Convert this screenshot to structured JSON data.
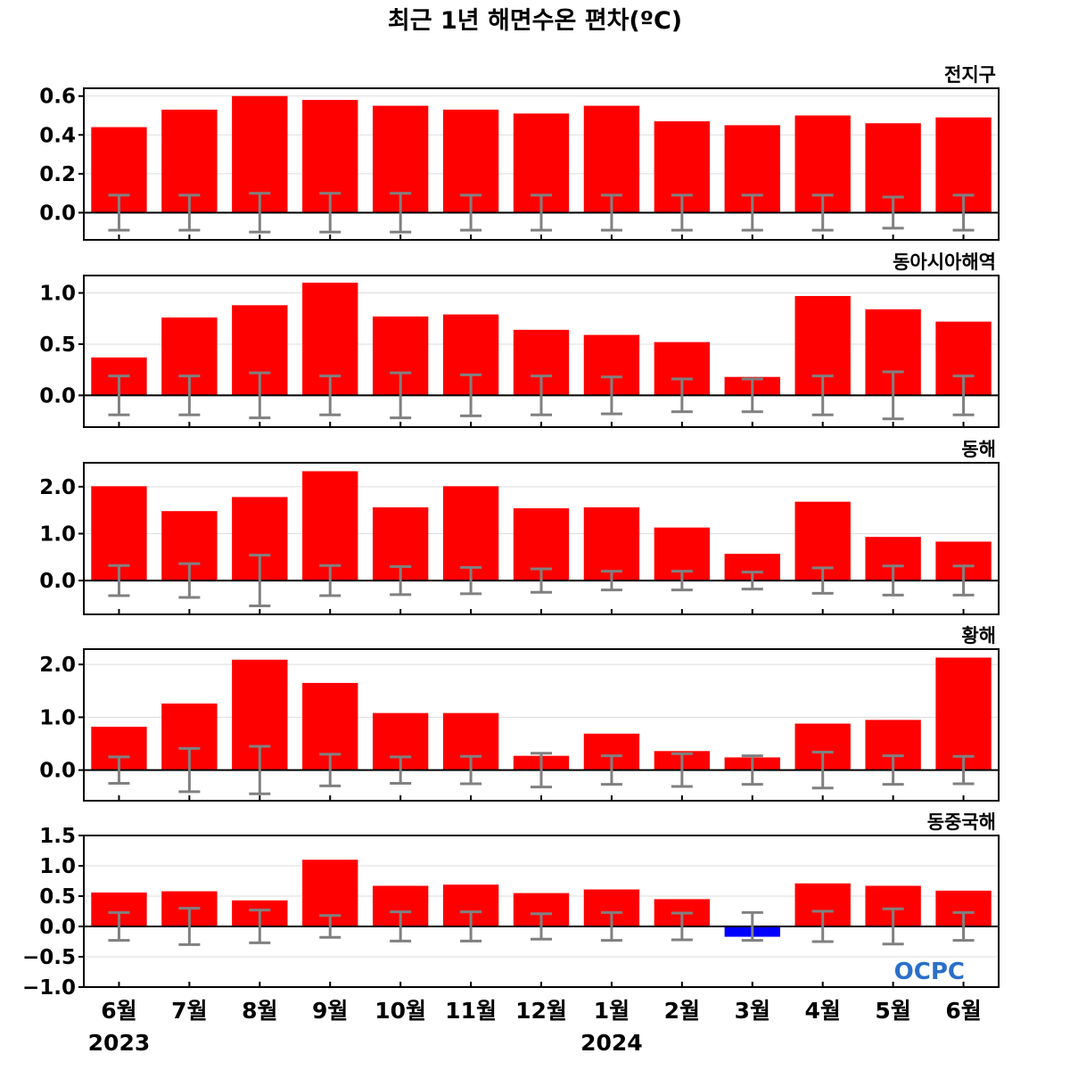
{
  "chart_data": {
    "type": "bar",
    "title": "최근 1년 해면수온 편차(ºC)",
    "categories": [
      "6월",
      "7월",
      "8월",
      "9월",
      "10월",
      "11월",
      "12월",
      "1월",
      "2월",
      "3월",
      "4월",
      "5월",
      "6월"
    ],
    "year_labels": [
      {
        "text": "2023",
        "category_index": 0
      },
      {
        "text": "2024",
        "category_index": 7
      }
    ],
    "logo_text": "OCPC",
    "colors": {
      "positive": "#ff0000",
      "negative": "#0000ff",
      "error_bar": "#808080",
      "zero_line": "#000000",
      "grid": "#dddddd",
      "logo": "#2a6fc9"
    },
    "panels": [
      {
        "name": "전지구",
        "ylim": [
          -0.14,
          0.64
        ],
        "yticks": [
          0.0,
          0.2,
          0.4,
          0.6
        ],
        "ytick_labels": [
          "0.0",
          "0.2",
          "0.4",
          "0.6"
        ],
        "values": [
          0.44,
          0.53,
          0.6,
          0.58,
          0.55,
          0.53,
          0.51,
          0.55,
          0.47,
          0.45,
          0.5,
          0.46,
          0.49
        ],
        "error": [
          0.09,
          0.09,
          0.1,
          0.1,
          0.1,
          0.09,
          0.09,
          0.09,
          0.09,
          0.09,
          0.09,
          0.08,
          0.09
        ]
      },
      {
        "name": "동아시아해역",
        "ylim": [
          -0.31,
          1.17
        ],
        "yticks": [
          0.0,
          0.5,
          1.0
        ],
        "ytick_labels": [
          "0.0",
          "0.5",
          "1.0"
        ],
        "values": [
          0.37,
          0.76,
          0.88,
          1.1,
          0.77,
          0.79,
          0.64,
          0.59,
          0.52,
          0.18,
          0.97,
          0.84,
          0.72
        ],
        "error": [
          0.19,
          0.19,
          0.22,
          0.19,
          0.22,
          0.2,
          0.19,
          0.18,
          0.16,
          0.16,
          0.19,
          0.23,
          0.19
        ]
      },
      {
        "name": "동해",
        "ylim": [
          -0.72,
          2.51
        ],
        "yticks": [
          0.0,
          1.0,
          2.0
        ],
        "ytick_labels": [
          "0.0",
          "1.0",
          "2.0"
        ],
        "values": [
          2.01,
          1.48,
          1.78,
          2.33,
          1.56,
          2.01,
          1.54,
          1.56,
          1.13,
          0.57,
          1.68,
          0.93,
          0.83
        ],
        "error": [
          0.32,
          0.36,
          0.54,
          0.32,
          0.3,
          0.28,
          0.25,
          0.2,
          0.2,
          0.18,
          0.27,
          0.31,
          0.31
        ]
      },
      {
        "name": "황해",
        "ylim": [
          -0.58,
          2.29
        ],
        "yticks": [
          0.0,
          1.0,
          2.0
        ],
        "ytick_labels": [
          "0.0",
          "1.0",
          "2.0"
        ],
        "values": [
          0.82,
          1.26,
          2.09,
          1.65,
          1.08,
          1.08,
          0.27,
          0.69,
          0.36,
          0.24,
          0.88,
          0.95,
          2.13
        ],
        "error": [
          0.25,
          0.41,
          0.45,
          0.3,
          0.25,
          0.26,
          0.32,
          0.27,
          0.31,
          0.27,
          0.34,
          0.27,
          0.26
        ]
      },
      {
        "name": "동중국해",
        "ylim": [
          -1.0,
          1.5
        ],
        "yticks": [
          -1.0,
          -0.5,
          0.0,
          0.5,
          1.0,
          1.5
        ],
        "ytick_labels": [
          "−1.0",
          "−0.5",
          "0.0",
          "0.5",
          "1.0",
          "1.5"
        ],
        "values": [
          0.56,
          0.58,
          0.43,
          1.1,
          0.67,
          0.69,
          0.55,
          0.61,
          0.45,
          -0.17,
          0.71,
          0.67,
          0.59
        ],
        "error": [
          0.23,
          0.3,
          0.27,
          0.18,
          0.24,
          0.24,
          0.21,
          0.23,
          0.22,
          0.23,
          0.25,
          0.29,
          0.23
        ]
      }
    ]
  }
}
